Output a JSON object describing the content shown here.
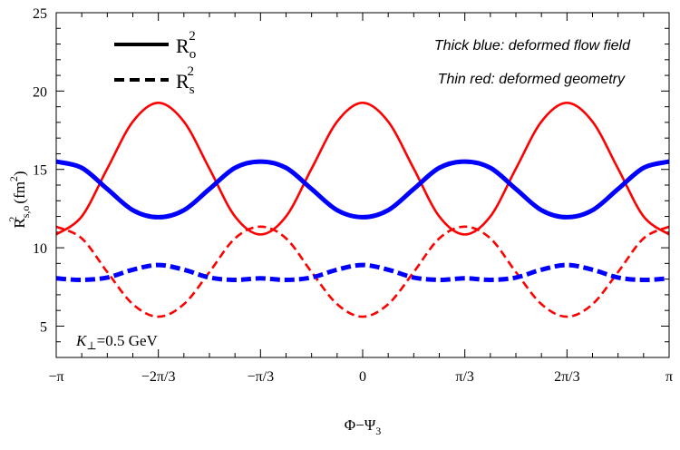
{
  "chart_data": {
    "type": "line",
    "xlabel": "Φ−Ψ",
    "xlabel_sub": "3",
    "ylabel": "R",
    "ylabel_sup": "2",
    "ylabel_sub": "s,o",
    "ylabel_unit": "(fm",
    "ylabel_unit_sup": "2",
    "ylabel_unit_end": ")",
    "xlim": [
      -3.14159,
      3.14159
    ],
    "ylim": [
      3,
      25
    ],
    "x_ticks": [
      {
        "value": -3.14159,
        "label": "−π"
      },
      {
        "value": -2.0944,
        "label": "−2π/3"
      },
      {
        "value": -1.0472,
        "label": "−π/3"
      },
      {
        "value": 0,
        "label": "0"
      },
      {
        "value": 1.0472,
        "label": "π/3"
      },
      {
        "value": 2.0944,
        "label": "2π/3"
      },
      {
        "value": 3.14159,
        "label": "π"
      }
    ],
    "y_ticks": [
      5,
      10,
      15,
      20,
      25
    ],
    "legend": {
      "placement": "top-left",
      "entries": [
        {
          "base": "R",
          "sup": "2",
          "sub": "o",
          "style": "solid"
        },
        {
          "base": "R",
          "sup": "2",
          "sub": "s",
          "style": "dashed"
        }
      ]
    },
    "annotations": {
      "blue_note": "Thick blue: deformed flow field",
      "red_note": "Thin red: deformed geometry",
      "momentum_italic": "K",
      "momentum_sub": "⊥",
      "momentum_value": "=0.5 GeV"
    },
    "series": [
      {
        "color": "#ff0000",
        "style": "solid",
        "weight": "thin",
        "x": [
          -3.1416,
          -2.8798,
          -2.618,
          -2.3562,
          -2.0944,
          -1.8326,
          -1.5708,
          -1.309,
          -1.0472,
          -0.7854,
          -0.5236,
          -0.2618,
          0,
          0.2618,
          0.5236,
          0.7854,
          1.0472,
          1.309,
          1.5708,
          1.8326,
          2.0944,
          2.3562,
          2.618,
          2.8798,
          3.1416
        ],
        "y": [
          10.85,
          12.0,
          15.05,
          18.05,
          19.25,
          18.05,
          15.05,
          12.0,
          10.85,
          12.0,
          15.05,
          18.05,
          19.25,
          18.05,
          15.05,
          12.0,
          10.85,
          12.0,
          15.05,
          18.05,
          19.25,
          18.05,
          15.05,
          12.0,
          10.85
        ]
      },
      {
        "color": "#ff0000",
        "style": "dashed",
        "weight": "thin",
        "x": [
          -3.1416,
          -2.8798,
          -2.618,
          -2.3562,
          -2.0944,
          -1.8326,
          -1.5708,
          -1.309,
          -1.0472,
          -0.7854,
          -0.5236,
          -0.2618,
          0,
          0.2618,
          0.5236,
          0.7854,
          1.0472,
          1.309,
          1.5708,
          1.8326,
          2.0944,
          2.3562,
          2.618,
          2.8798,
          3.1416
        ],
        "y": [
          11.35,
          10.6,
          8.45,
          6.4,
          5.6,
          6.4,
          8.45,
          10.6,
          11.35,
          10.6,
          8.45,
          6.4,
          5.6,
          6.4,
          8.45,
          10.6,
          11.35,
          10.6,
          8.45,
          6.4,
          5.6,
          6.4,
          8.45,
          10.6,
          11.35
        ]
      },
      {
        "color": "#0000ff",
        "style": "solid",
        "weight": "thick",
        "x": [
          -3.1416,
          -2.8798,
          -2.618,
          -2.3562,
          -2.0944,
          -1.8326,
          -1.5708,
          -1.309,
          -1.0472,
          -0.7854,
          -0.5236,
          -0.2618,
          0,
          0.2618,
          0.5236,
          0.7854,
          1.0472,
          1.309,
          1.5708,
          1.8326,
          2.0944,
          2.3562,
          2.618,
          2.8798,
          3.1416
        ],
        "y": [
          15.5,
          15.1,
          13.75,
          12.4,
          11.95,
          12.4,
          13.75,
          15.1,
          15.5,
          15.1,
          13.75,
          12.4,
          11.95,
          12.4,
          13.75,
          15.1,
          15.5,
          15.1,
          13.75,
          12.4,
          11.95,
          12.4,
          13.75,
          15.1,
          15.5
        ]
      },
      {
        "color": "#0000ff",
        "style": "dashed",
        "weight": "thick",
        "x": [
          -3.1416,
          -2.8798,
          -2.618,
          -2.3562,
          -2.0944,
          -1.8326,
          -1.5708,
          -1.309,
          -1.0472,
          -0.7854,
          -0.5236,
          -0.2618,
          0,
          0.2618,
          0.5236,
          0.7854,
          1.0472,
          1.309,
          1.5708,
          1.8326,
          2.0944,
          2.3562,
          2.618,
          2.8798,
          3.1416
        ],
        "y": [
          8.05,
          7.95,
          8.1,
          8.6,
          8.9,
          8.6,
          8.1,
          7.95,
          8.05,
          7.95,
          8.1,
          8.6,
          8.9,
          8.6,
          8.1,
          7.95,
          8.05,
          7.95,
          8.1,
          8.6,
          8.9,
          8.6,
          8.1,
          7.95,
          8.05
        ]
      }
    ]
  }
}
